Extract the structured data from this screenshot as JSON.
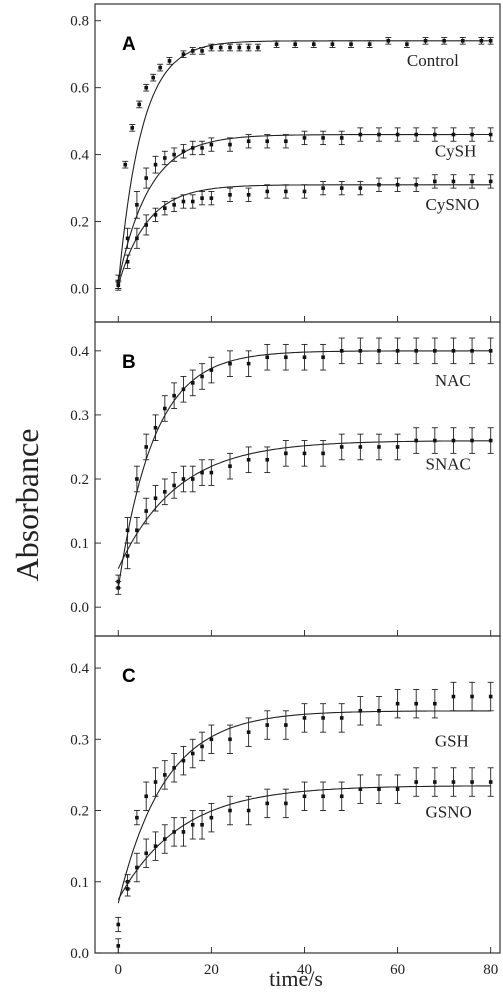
{
  "ylabel": "Absorbance",
  "xlabel": "time/s",
  "chart_data": [
    {
      "type": "scatter",
      "panel": "A",
      "xlim": [
        -5,
        82
      ],
      "ylim": [
        -0.1,
        0.85
      ],
      "xticks": [
        0,
        20,
        40,
        60,
        80
      ],
      "yticks": [
        "0.0",
        "0.2",
        "0.4",
        "0.6",
        "0.8"
      ],
      "series": [
        {
          "name": "Control",
          "label_pos": [
            62,
            0.665
          ],
          "x": [
            0,
            1.5,
            3,
            4.5,
            6,
            7.5,
            9,
            11,
            14,
            16,
            18,
            20,
            22,
            24,
            26,
            28,
            30,
            34,
            38,
            42,
            46,
            50,
            54,
            58,
            62,
            66,
            70,
            74,
            78,
            80
          ],
          "y": [
            0.01,
            0.37,
            0.48,
            0.55,
            0.6,
            0.63,
            0.66,
            0.68,
            0.7,
            0.71,
            0.71,
            0.72,
            0.72,
            0.72,
            0.72,
            0.72,
            0.72,
            0.73,
            0.73,
            0.73,
            0.73,
            0.73,
            0.73,
            0.74,
            0.73,
            0.74,
            0.74,
            0.74,
            0.74,
            0.74
          ],
          "err": [
            0.015,
            0.01,
            0.01,
            0.01,
            0.01,
            0.01,
            0.01,
            0.01,
            0.01,
            0.01,
            0.01,
            0.01,
            0.01,
            0.01,
            0.01,
            0.01,
            0.01,
            0.01,
            0.01,
            0.01,
            0.01,
            0.01,
            0.01,
            0.01,
            0.01,
            0.01,
            0.01,
            0.01,
            0.01,
            0.01
          ],
          "fit": {
            "a": 0.73,
            "k": 0.2,
            "b": 0.01
          }
        },
        {
          "name": "CySH",
          "label_pos": [
            68,
            0.395
          ],
          "x": [
            0,
            2,
            4,
            6,
            8,
            10,
            12,
            14,
            16,
            18,
            20,
            24,
            28,
            32,
            36,
            40,
            44,
            48,
            52,
            56,
            60,
            64,
            68,
            72,
            76,
            80
          ],
          "y": [
            0.02,
            0.15,
            0.25,
            0.33,
            0.37,
            0.39,
            0.4,
            0.41,
            0.42,
            0.42,
            0.43,
            0.43,
            0.44,
            0.44,
            0.44,
            0.45,
            0.45,
            0.45,
            0.46,
            0.46,
            0.46,
            0.46,
            0.46,
            0.46,
            0.46,
            0.46
          ],
          "err": [
            0.02,
            0.03,
            0.04,
            0.03,
            0.025,
            0.02,
            0.02,
            0.02,
            0.02,
            0.02,
            0.02,
            0.02,
            0.02,
            0.02,
            0.02,
            0.02,
            0.02,
            0.02,
            0.02,
            0.02,
            0.02,
            0.02,
            0.02,
            0.02,
            0.02,
            0.02
          ],
          "fit": {
            "a": 0.44,
            "k": 0.15,
            "b": 0.02
          }
        },
        {
          "name": "CySNO",
          "label_pos": [
            66,
            0.235
          ],
          "x": [
            0,
            2,
            4,
            6,
            8,
            10,
            12,
            14,
            16,
            18,
            20,
            24,
            28,
            32,
            36,
            40,
            44,
            48,
            52,
            56,
            60,
            64,
            68,
            72,
            76,
            80
          ],
          "y": [
            0.01,
            0.08,
            0.15,
            0.19,
            0.22,
            0.24,
            0.25,
            0.26,
            0.26,
            0.27,
            0.27,
            0.28,
            0.28,
            0.29,
            0.29,
            0.29,
            0.3,
            0.3,
            0.3,
            0.31,
            0.31,
            0.31,
            0.32,
            0.32,
            0.32,
            0.32
          ],
          "err": [
            0.01,
            0.02,
            0.03,
            0.03,
            0.02,
            0.02,
            0.02,
            0.02,
            0.02,
            0.02,
            0.02,
            0.02,
            0.02,
            0.02,
            0.02,
            0.02,
            0.02,
            0.02,
            0.02,
            0.02,
            0.02,
            0.02,
            0.02,
            0.02,
            0.02,
            0.02
          ],
          "fit": {
            "a": 0.3,
            "k": 0.16,
            "b": 0.01
          }
        }
      ]
    },
    {
      "type": "scatter",
      "panel": "B",
      "xlim": [
        -5,
        82
      ],
      "ylim": [
        -0.045,
        0.445
      ],
      "xticks": [
        0,
        20,
        40,
        60,
        80
      ],
      "yticks": [
        "0.0",
        "0.1",
        "0.2",
        "0.3",
        "0.4"
      ],
      "series": [
        {
          "name": "NAC",
          "label_pos": [
            68,
            0.345
          ],
          "x": [
            0,
            2,
            4,
            6,
            8,
            10,
            12,
            14,
            16,
            18,
            20,
            24,
            28,
            32,
            36,
            40,
            44,
            48,
            52,
            56,
            60,
            64,
            68,
            72,
            76,
            80
          ],
          "y": [
            0.04,
            0.12,
            0.2,
            0.25,
            0.28,
            0.31,
            0.33,
            0.34,
            0.35,
            0.36,
            0.37,
            0.38,
            0.38,
            0.39,
            0.39,
            0.39,
            0.39,
            0.4,
            0.4,
            0.4,
            0.4,
            0.4,
            0.4,
            0.4,
            0.4,
            0.4
          ],
          "err": [
            0.01,
            0.02,
            0.02,
            0.02,
            0.02,
            0.02,
            0.02,
            0.02,
            0.02,
            0.02,
            0.02,
            0.02,
            0.02,
            0.02,
            0.02,
            0.02,
            0.02,
            0.02,
            0.02,
            0.02,
            0.02,
            0.02,
            0.02,
            0.02,
            0.02,
            0.02
          ],
          "fit": {
            "a": 0.37,
            "k": 0.13,
            "b": 0.03
          }
        },
        {
          "name": "SNAC",
          "label_pos": [
            66,
            0.215
          ],
          "x": [
            0,
            2,
            4,
            6,
            8,
            10,
            12,
            14,
            16,
            18,
            20,
            24,
            28,
            32,
            36,
            40,
            44,
            48,
            52,
            56,
            60,
            64,
            68,
            72,
            76,
            80
          ],
          "y": [
            0.03,
            0.08,
            0.12,
            0.15,
            0.17,
            0.18,
            0.19,
            0.2,
            0.2,
            0.21,
            0.21,
            0.22,
            0.23,
            0.23,
            0.24,
            0.24,
            0.24,
            0.25,
            0.25,
            0.25,
            0.25,
            0.26,
            0.26,
            0.26,
            0.26,
            0.26
          ],
          "err": [
            0.01,
            0.02,
            0.02,
            0.02,
            0.02,
            0.02,
            0.02,
            0.02,
            0.02,
            0.02,
            0.02,
            0.02,
            0.02,
            0.02,
            0.02,
            0.02,
            0.02,
            0.02,
            0.02,
            0.02,
            0.02,
            0.02,
            0.02,
            0.02,
            0.02,
            0.02
          ],
          "fit": {
            "a": 0.2,
            "k": 0.08,
            "b": 0.06
          }
        }
      ]
    },
    {
      "type": "scatter",
      "panel": "C",
      "xlim": [
        -5,
        82
      ],
      "ylim": [
        0.0,
        0.445
      ],
      "xticks": [
        0,
        20,
        40,
        60,
        80
      ],
      "yticks": [
        "0.0",
        "0.1",
        "0.2",
        "0.3",
        "0.4"
      ],
      "series": [
        {
          "name": "GSH",
          "label_pos": [
            68,
            0.29
          ],
          "x": [
            0,
            2,
            4,
            6,
            8,
            10,
            12,
            14,
            16,
            18,
            20,
            24,
            28,
            32,
            36,
            40,
            44,
            48,
            52,
            56,
            60,
            64,
            68,
            72,
            76,
            80
          ],
          "y": [
            0.04,
            0.1,
            0.19,
            0.22,
            0.24,
            0.25,
            0.26,
            0.27,
            0.28,
            0.29,
            0.3,
            0.3,
            0.31,
            0.32,
            0.32,
            0.33,
            0.33,
            0.33,
            0.34,
            0.34,
            0.35,
            0.35,
            0.35,
            0.36,
            0.36,
            0.36
          ],
          "err": [
            0.01,
            0.01,
            0.01,
            0.02,
            0.02,
            0.02,
            0.02,
            0.02,
            0.02,
            0.02,
            0.02,
            0.02,
            0.02,
            0.02,
            0.02,
            0.02,
            0.02,
            0.02,
            0.02,
            0.02,
            0.02,
            0.02,
            0.02,
            0.02,
            0.02,
            0.02
          ],
          "fit": {
            "a": 0.27,
            "k": 0.1,
            "b": 0.07
          }
        },
        {
          "name": "GSNO",
          "label_pos": [
            66,
            0.19
          ],
          "x": [
            0,
            2,
            4,
            6,
            8,
            10,
            12,
            14,
            16,
            18,
            20,
            24,
            28,
            32,
            36,
            40,
            44,
            48,
            52,
            56,
            60,
            64,
            68,
            72,
            76,
            80
          ],
          "y": [
            0.01,
            0.09,
            0.12,
            0.14,
            0.15,
            0.16,
            0.17,
            0.17,
            0.18,
            0.18,
            0.19,
            0.2,
            0.2,
            0.21,
            0.21,
            0.22,
            0.22,
            0.22,
            0.23,
            0.23,
            0.23,
            0.24,
            0.24,
            0.24,
            0.24,
            0.24
          ],
          "err": [
            0.01,
            0.01,
            0.02,
            0.02,
            0.02,
            0.02,
            0.02,
            0.02,
            0.02,
            0.02,
            0.02,
            0.02,
            0.02,
            0.02,
            0.02,
            0.02,
            0.02,
            0.02,
            0.02,
            0.02,
            0.02,
            0.02,
            0.02,
            0.02,
            0.02,
            0.02
          ],
          "fit": {
            "a": 0.16,
            "k": 0.075,
            "b": 0.075
          }
        }
      ]
    }
  ]
}
